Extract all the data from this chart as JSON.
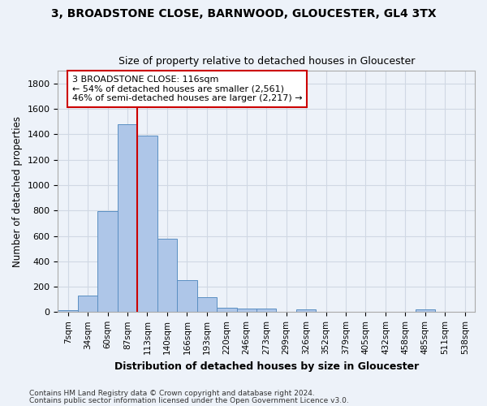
{
  "title": "3, BROADSTONE CLOSE, BARNWOOD, GLOUCESTER, GL4 3TX",
  "subtitle": "Size of property relative to detached houses in Gloucester",
  "xlabel": "Distribution of detached houses by size in Gloucester",
  "ylabel": "Number of detached properties",
  "bar_labels": [
    "7sqm",
    "34sqm",
    "60sqm",
    "87sqm",
    "113sqm",
    "140sqm",
    "166sqm",
    "193sqm",
    "220sqm",
    "246sqm",
    "273sqm",
    "299sqm",
    "326sqm",
    "352sqm",
    "379sqm",
    "405sqm",
    "432sqm",
    "458sqm",
    "485sqm",
    "511sqm",
    "538sqm"
  ],
  "bar_values": [
    15,
    130,
    795,
    1480,
    1390,
    575,
    250,
    115,
    35,
    28,
    28,
    5,
    20,
    0,
    0,
    0,
    0,
    0,
    20,
    0,
    0
  ],
  "bar_color": "#aec6e8",
  "bar_edge_color": "#5a8fc2",
  "grid_color": "#d0d8e4",
  "bg_color": "#edf2f9",
  "vline_x_idx": 3.5,
  "vline_color": "#cc0000",
  "annotation_line1": "3 BROADSTONE CLOSE: 116sqm",
  "annotation_line2": "← 54% of detached houses are smaller (2,561)",
  "annotation_line3": "46% of semi-detached houses are larger (2,217) →",
  "annotation_box_color": "#cc0000",
  "footnote1": "Contains HM Land Registry data © Crown copyright and database right 2024.",
  "footnote2": "Contains public sector information licensed under the Open Government Licence v3.0.",
  "ylim": [
    0,
    1900
  ],
  "yticks": [
    0,
    200,
    400,
    600,
    800,
    1000,
    1200,
    1400,
    1600,
    1800
  ]
}
